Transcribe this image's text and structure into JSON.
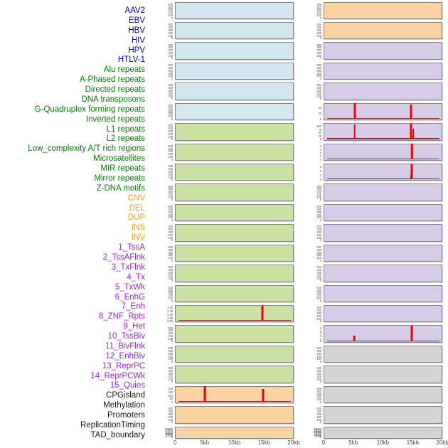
{
  "colors": {
    "label": {
      "virus": "#0000cc",
      "repeat": "#008000",
      "sv": "#ffa500",
      "chromatin": "#a020f0",
      "other": "#1a1a1a"
    },
    "fill": {
      "virus": "#d2e7ef",
      "repeat": "#cbe1a3",
      "sv": "#fbd3a2",
      "chromatin": "#d7cce7",
      "other": "#d4d4d4"
    },
    "spike": "#f10000",
    "baseline": "#961c1c",
    "panel_border": "#858585",
    "tick_text": "#5a5a5a",
    "axis_text": "#4d4d4d"
  },
  "chart_data": {
    "type": "area",
    "title": "",
    "xlabel": "",
    "x_range_kb": [
      0,
      20
    ],
    "x_ticks": [
      "0",
      "5kb",
      "10kb",
      "15kb",
      "20kb"
    ],
    "x_tick_pct": [
      0,
      25,
      50,
      75,
      100
    ],
    "legend_position": "none",
    "grid": false,
    "columns": {
      "left": {
        "panels": [
          {
            "label": "AAV2",
            "cat": "virus",
            "yticks": [
              "500",
              "400",
              "300",
              "200",
              "100",
              "0"
            ],
            "spread": 0.94,
            "peaks": [],
            "spike_bars": [],
            "baseline": false
          },
          {
            "label": "EBV",
            "cat": "virus",
            "yticks": [
              "500",
              "400",
              "300",
              "200",
              "100",
              "0"
            ],
            "spread": 0.94,
            "peaks": [],
            "spike_bars": [],
            "baseline": false
          },
          {
            "label": "HBV",
            "cat": "virus",
            "yticks": [
              "500",
              "400",
              "300",
              "200",
              "100",
              "0"
            ],
            "spread": 0.94,
            "peaks": [],
            "spike_bars": [],
            "baseline": false
          },
          {
            "label": "HIV",
            "cat": "virus",
            "yticks": [
              "500",
              "400",
              "300",
              "200",
              "100",
              "0"
            ],
            "spread": 0.94,
            "peaks": [],
            "spike_bars": [],
            "baseline": false
          },
          {
            "label": "HPV",
            "cat": "virus",
            "yticks": [
              "500",
              "400",
              "300",
              "200",
              "100",
              "0"
            ],
            "spread": 0.94,
            "peaks": [],
            "spike_bars": [],
            "baseline": false
          },
          {
            "label": "HTLV-1",
            "cat": "virus",
            "yticks": [
              "500",
              "400",
              "300",
              "200",
              "100",
              "0"
            ],
            "spread": 0.94,
            "peaks": [],
            "spike_bars": [],
            "baseline": false
          },
          {
            "label": "Alu repeats",
            "cat": "repeat",
            "yticks": [
              "500",
              "400",
              "300",
              "200",
              "100",
              "0"
            ],
            "spread": 0.94,
            "peaks": [],
            "spike_bars": [],
            "baseline": false
          },
          {
            "label": "A-Phased repeats",
            "cat": "repeat",
            "yticks": [
              "500",
              "400",
              "300",
              "200",
              "100",
              "0"
            ],
            "spread": 0.94,
            "peaks": [],
            "spike_bars": [],
            "baseline": false
          },
          {
            "label": "Directed repeats",
            "cat": "repeat",
            "yticks": [
              "500",
              "400",
              "300",
              "200",
              "100",
              "0"
            ],
            "spread": 0.94,
            "peaks": [],
            "spike_bars": [],
            "baseline": false
          },
          {
            "label": "DNA transposons",
            "cat": "repeat",
            "yticks": [
              "500",
              "400",
              "300",
              "200",
              "100",
              "0"
            ],
            "spread": 0.94,
            "peaks": [],
            "spike_bars": [],
            "baseline": false
          },
          {
            "label": "G-Quadruplex forming repeats",
            "cat": "repeat",
            "yticks": [
              "500",
              "400",
              "300",
              "200",
              "100",
              "0"
            ],
            "spread": 0.94,
            "peaks": [],
            "spike_bars": [],
            "baseline": false
          },
          {
            "label": "Inverted repeats",
            "cat": "repeat",
            "yticks": [
              "500",
              "400",
              "300",
              "200",
              "100",
              "0"
            ],
            "spread": 0.94,
            "peaks": [],
            "spike_bars": [],
            "baseline": false
          },
          {
            "label": "L1 repeats",
            "cat": "repeat",
            "yticks": [
              "500",
              "400",
              "300",
              "200",
              "100",
              "0"
            ],
            "spread": 0.94,
            "peaks": [],
            "spike_bars": [],
            "baseline": false
          },
          {
            "label": "L2 repeats",
            "cat": "repeat",
            "yticks": [
              "500",
              "400",
              "300",
              "200",
              "100",
              "0"
            ],
            "spread": 0.94,
            "peaks": [],
            "spike_bars": [],
            "baseline": false
          },
          {
            "label": "Low_complexity A/T rich regions",
            "cat": "repeat",
            "yticks": [
              "500",
              "400",
              "300",
              "200",
              "100",
              "0"
            ],
            "spread": 0.94,
            "peaks": [],
            "spike_bars": [],
            "baseline": false
          },
          {
            "label": "Microsatellites",
            "cat": "repeat",
            "yticks": [
              "1.00",
              "0.75",
              "0.50",
              "0.25",
              "0.00"
            ],
            "spread": 0.95,
            "peaks": [
              {
                "x_kb": 15,
                "value": 1.0
              }
            ],
            "spike_bars": [
              [
                74,
                95,
                3
              ]
            ],
            "baseline": true
          },
          {
            "label": "MIR repeats",
            "cat": "repeat",
            "yticks": [
              "500",
              "400",
              "300",
              "200",
              "100",
              "0"
            ],
            "spread": 0.94,
            "peaks": [],
            "spike_bars": [],
            "baseline": false
          },
          {
            "label": "Mirror repeats",
            "cat": "repeat",
            "yticks": [
              "500",
              "400",
              "300",
              "200",
              "100",
              "0"
            ],
            "spread": 0.94,
            "peaks": [],
            "spike_bars": [],
            "baseline": false
          },
          {
            "label": "Z-DNA motifs",
            "cat": "repeat",
            "yticks": [
              "500",
              "400",
              "300",
              "200",
              "100",
              "0"
            ],
            "spread": 0.94,
            "peaks": [],
            "spike_bars": [],
            "baseline": false
          },
          {
            "label": "CNV",
            "cat": "sv",
            "yticks": [
              "200",
              "150",
              "100",
              "50",
              "0"
            ],
            "spread": 0.93,
            "peaks": [
              {
                "x_kb": 5,
                "value": 210
              },
              {
                "x_kb": 15,
                "value": 185
              }
            ],
            "spike_bars": [
              [
                25,
                97,
                3
              ],
              [
                74.3,
                82,
                3
              ]
            ],
            "baseline": true
          },
          {
            "label": "DEL",
            "cat": "sv",
            "yticks": [
              "500",
              "400",
              "300",
              "200",
              "100",
              "0"
            ],
            "spread": 0.94,
            "peaks": [],
            "spike_bars": [],
            "baseline": false
          },
          {
            "label": "DUP",
            "cat": "sv",
            "yticks": [
              "50000",
              "40000",
              "30000",
              "20000",
              "10000",
              "0"
            ],
            "spread": 0.9,
            "peaks": [],
            "spike_bars": [],
            "baseline": false
          }
        ]
      },
      "right": {
        "panels": [
          {
            "label": "INS",
            "cat": "sv",
            "yticks": [
              "500",
              "400",
              "300",
              "200",
              "100",
              "0"
            ],
            "spread": 0.94,
            "peaks": [],
            "spike_bars": [],
            "baseline": false
          },
          {
            "label": "INV",
            "cat": "sv",
            "yticks": [
              "500",
              "400",
              "300",
              "200",
              "100",
              "0"
            ],
            "spread": 0.94,
            "peaks": [],
            "spike_bars": [],
            "baseline": false
          },
          {
            "label": "1_TssA",
            "cat": "chromatin",
            "yticks": [
              "500",
              "400",
              "300",
              "200",
              "100",
              "0"
            ],
            "spread": 0.94,
            "peaks": [],
            "spike_bars": [],
            "baseline": false
          },
          {
            "label": "2_TssAFlnk",
            "cat": "chromatin",
            "yticks": [
              "500",
              "400",
              "300",
              "200",
              "100",
              "0"
            ],
            "spread": 0.94,
            "peaks": [],
            "spike_bars": [],
            "baseline": false
          },
          {
            "label": "3_TxFlnk",
            "cat": "chromatin",
            "yticks": [
              "500",
              "400",
              "300",
              "200",
              "100",
              "0"
            ],
            "spread": 0.94,
            "peaks": [],
            "spike_bars": [],
            "baseline": false
          },
          {
            "label": "4_Tx",
            "cat": "chromatin",
            "yticks": [
              "40",
              "20",
              "0"
            ],
            "spread": 0.77,
            "peaks": [
              {
                "x_kb": 5,
                "value": 50
              },
              {
                "x_kb": 15,
                "value": 47
              }
            ],
            "spike_bars": [
              [
                26,
                97,
                3
              ],
              [
                74,
                91,
                3
              ]
            ],
            "baseline": true
          },
          {
            "label": "5_TxWk",
            "cat": "chromatin",
            "yticks": [
              "100",
              "75",
              "50",
              "25",
              "0"
            ],
            "spread": 0.9,
            "peaks": [
              {
                "x_kb": 5,
                "value": 95
              },
              {
                "x_kb": 15,
                "value": 103
              }
            ],
            "spike_bars": [
              [
                26,
                90,
                2.5
              ],
              [
                74.2,
                97,
                3
              ],
              [
                75.8,
                66,
                1.5
              ]
            ],
            "baseline": true
          },
          {
            "label": "6_EnhG",
            "cat": "chromatin",
            "yticks": [
              "4",
              "3",
              "2",
              "1",
              "0"
            ],
            "spread": 0.92,
            "peaks": [
              {
                "x_kb": 15,
                "value": 4.3
              }
            ],
            "spike_bars": [
              [
                74.6,
                96,
                2.5
              ]
            ],
            "baseline": true
          },
          {
            "label": "7_Enh",
            "cat": "chromatin",
            "yticks": [
              "3",
              "2",
              "1",
              "0"
            ],
            "spread": 0.92,
            "peaks": [
              {
                "x_kb": 15,
                "value": 3.2
              }
            ],
            "spike_bars": [
              [
                73.7,
                30,
                2
              ],
              [
                74.8,
                94,
                3
              ]
            ],
            "baseline": true
          },
          {
            "label": "8_ZNF_Rpts",
            "cat": "chromatin",
            "yticks": [
              "500",
              "400",
              "300",
              "200",
              "100",
              "0"
            ],
            "spread": 0.94,
            "peaks": [],
            "spike_bars": [],
            "baseline": false
          },
          {
            "label": "9_Het",
            "cat": "chromatin",
            "yticks": [
              "500",
              "400",
              "300",
              "200",
              "100",
              "0"
            ],
            "spread": 0.94,
            "peaks": [],
            "spike_bars": [],
            "baseline": false
          },
          {
            "label": "10_TssBiv",
            "cat": "chromatin",
            "yticks": [
              "500",
              "400",
              "300",
              "200",
              "100",
              "0"
            ],
            "spread": 0.94,
            "peaks": [],
            "spike_bars": [],
            "baseline": false
          },
          {
            "label": "11_BivFlnk",
            "cat": "chromatin",
            "yticks": [
              "500",
              "400",
              "300",
              "200",
              "100",
              "0"
            ],
            "spread": 0.94,
            "peaks": [],
            "spike_bars": [],
            "baseline": false
          },
          {
            "label": "12_EnhBiv",
            "cat": "chromatin",
            "yticks": [
              "500",
              "400",
              "300",
              "200",
              "100",
              "0"
            ],
            "spread": 0.94,
            "peaks": [],
            "spike_bars": [],
            "baseline": false
          },
          {
            "label": "13_ReprPC",
            "cat": "chromatin",
            "yticks": [
              "500",
              "400",
              "300",
              "200",
              "100",
              "0"
            ],
            "spread": 0.94,
            "peaks": [],
            "spike_bars": [],
            "baseline": false
          },
          {
            "label": "14_ReprPCWk",
            "cat": "chromatin",
            "yticks": [
              "500",
              "400",
              "300",
              "200",
              "100",
              "0"
            ],
            "spread": 0.94,
            "peaks": [],
            "spike_bars": [],
            "baseline": false
          },
          {
            "label": "15_Quies",
            "cat": "chromatin",
            "yticks": [
              "5",
              "4",
              "3",
              "2",
              "1",
              "0"
            ],
            "spread": 0.93,
            "peaks": [
              {
                "x_kb": 5,
                "value": 1.9
              },
              {
                "x_kb": 15,
                "value": 5.2
              }
            ],
            "spike_bars": [
              [
                25.5,
                36,
                2.5
              ],
              [
                74.6,
                97,
                3
              ]
            ],
            "baseline": true
          },
          {
            "label": "CPGisland",
            "cat": "other",
            "yticks": [
              "500",
              "400",
              "300",
              "200",
              "100",
              "0"
            ],
            "spread": 0.94,
            "peaks": [],
            "spike_bars": [],
            "baseline": false
          },
          {
            "label": "Methylation",
            "cat": "other",
            "yticks": [
              "500",
              "400",
              "300",
              "200",
              "100",
              "0"
            ],
            "spread": 0.94,
            "peaks": [],
            "spike_bars": [],
            "baseline": false
          },
          {
            "label": "Promoters",
            "cat": "other",
            "yticks": [
              "500",
              "400",
              "300",
              "200",
              "100",
              "0"
            ],
            "spread": 0.94,
            "peaks": [],
            "spike_bars": [],
            "baseline": false
          },
          {
            "label": "ReplicationTiming",
            "cat": "other",
            "yticks": [
              "500",
              "400",
              "300",
              "200",
              "100",
              "0"
            ],
            "spread": 0.94,
            "peaks": [],
            "spike_bars": [],
            "baseline": false
          },
          {
            "label": "TAD_boundary",
            "cat": "other",
            "yticks": [
              "30000",
              "25000",
              "20000",
              "15000",
              "10000",
              "5000",
              "0"
            ],
            "spread": 0.9,
            "peaks": [],
            "spike_bars": [],
            "baseline": false
          }
        ]
      }
    }
  }
}
